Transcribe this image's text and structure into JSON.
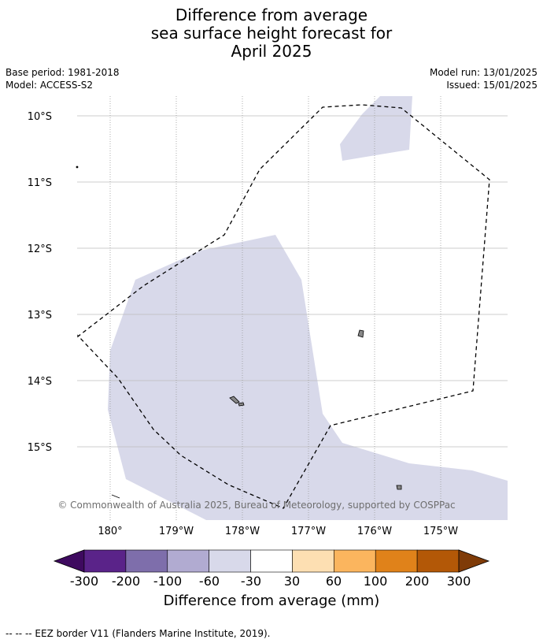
{
  "title": {
    "line1": "Difference from average",
    "line2": "sea surface height forecast for",
    "line3": "April 2025"
  },
  "meta": {
    "base_period": "Base period: 1981-2018",
    "model": "Model: ACCESS-S2",
    "model_run": "Model run: 13/01/2025",
    "issued": "Issued: 15/01/2025"
  },
  "map": {
    "lat_labels": [
      "10°S",
      "11°S",
      "12°S",
      "13°S",
      "14°S",
      "15°S"
    ],
    "lon_labels": [
      "180°",
      "179°W",
      "178°W",
      "177°W",
      "176°W",
      "175°W"
    ],
    "copyright": "© Commonwealth of Australia 2025, Bureau of Meteorology, supported by COSPPac",
    "shade_color": "#d8d9ea",
    "land_color": "#888888"
  },
  "colorbar": {
    "ticks": [
      "-300",
      "-200",
      "-100",
      "-60",
      "-30",
      "30",
      "60",
      "100",
      "200",
      "300"
    ],
    "colors": [
      "#5a2389",
      "#7e6eab",
      "#b1abd1",
      "#d8d9ea",
      "#ffffff",
      "#fddfb2",
      "#fbb55e",
      "#e0821a",
      "#b35807"
    ],
    "low_extend_color": "#3e0a5f",
    "high_extend_color": "#7f3b08",
    "label": "Difference from average (mm)"
  },
  "footnote": "--  --  -- EEZ border V11 (Flanders Marine Institute, 2019)."
}
